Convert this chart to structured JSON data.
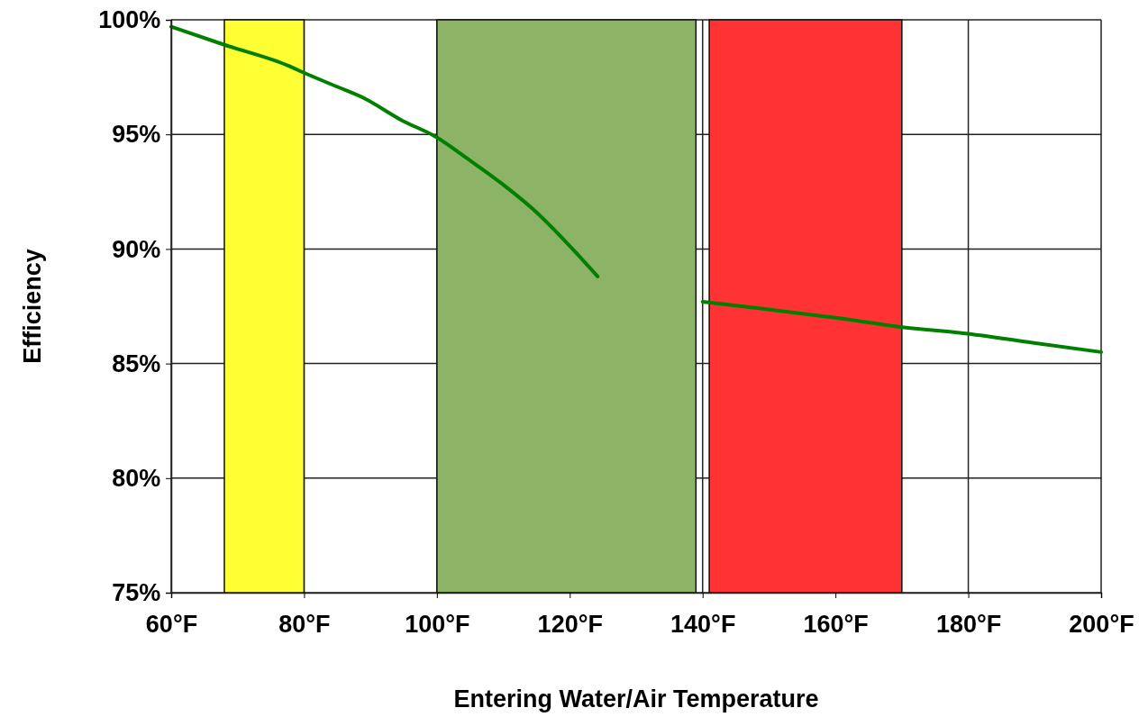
{
  "chart_data": {
    "type": "line",
    "xlabel": "Entering Water/Air Temperature",
    "ylabel": "Efficiency",
    "x": [
      60,
      68.1,
      77.6,
      79.9,
      84.8,
      88.9,
      94.8,
      99.8,
      104.8,
      110,
      115,
      120.1,
      124.2,
      132,
      140,
      148.8,
      160,
      169.8,
      179.9,
      189.9,
      200
    ],
    "series": [
      {
        "color": "#008000",
        "values": [
          99.7,
          98.9,
          98.0,
          97.7,
          97.1,
          96.6,
          95.6,
          94.9,
          93.9,
          92.8,
          91.6,
          90.1,
          88.8,
          null,
          87.7,
          87.4,
          87.0,
          86.6,
          86.3,
          85.9,
          85.5
        ]
      }
    ],
    "xlim": [
      60,
      200
    ],
    "xticks": [
      {
        "value": 60,
        "label": "60°F"
      },
      {
        "value": 80,
        "label": "80°F"
      },
      {
        "value": 100,
        "label": "100°F"
      },
      {
        "value": 120,
        "label": "120°F"
      },
      {
        "value": 140,
        "label": "140°F"
      },
      {
        "value": 160,
        "label": "160°F"
      },
      {
        "value": 180,
        "label": "180°F"
      },
      {
        "value": 200,
        "label": "200°F"
      }
    ],
    "ylim": [
      75,
      100
    ],
    "yticks": [
      {
        "value": 75,
        "label": "75%"
      },
      {
        "value": 80,
        "label": "80%"
      },
      {
        "value": 85,
        "label": "85%"
      },
      {
        "value": 90,
        "label": "90%"
      },
      {
        "value": 95,
        "label": "95%"
      },
      {
        "value": 100,
        "label": "100%"
      }
    ],
    "grid": true,
    "bands": [
      {
        "axis": "x",
        "from": 68,
        "to": 80,
        "color": "#ffff33"
      },
      {
        "axis": "x",
        "from": 100,
        "to": 139,
        "color": "#8db466"
      },
      {
        "axis": "x",
        "from": 141,
        "to": 170,
        "color": "#ff3333"
      }
    ]
  }
}
